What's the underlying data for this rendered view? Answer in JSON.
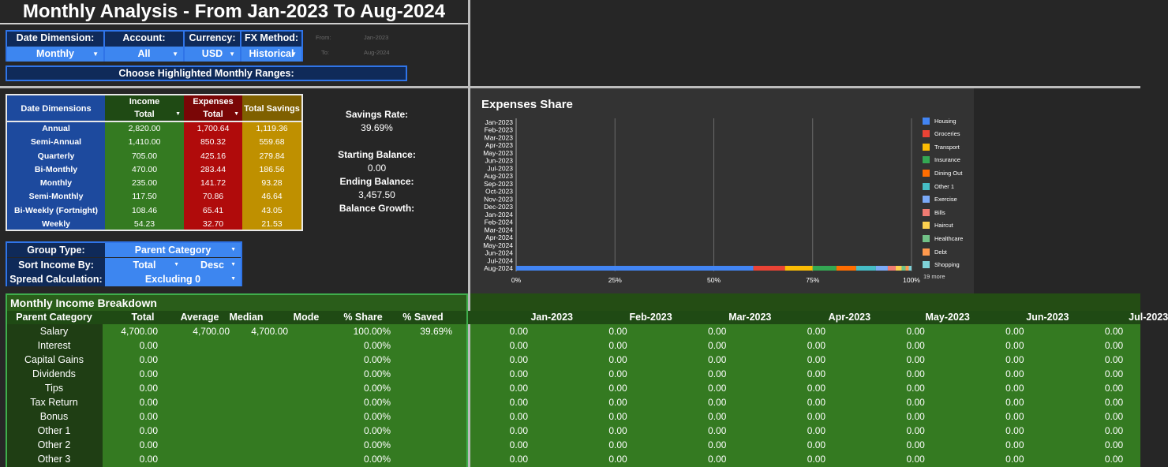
{
  "title": "Monthly Analysis - From Jan-2023 To Aug-2024",
  "controls": [
    {
      "label": "Date Dimension:",
      "value": "Monthly"
    },
    {
      "label": "Account:",
      "value": "All"
    },
    {
      "label": "Currency:",
      "value": "USD"
    },
    {
      "label": "FX Method:",
      "value": "Historical"
    }
  ],
  "range_ghost": {
    "from_label": "From:",
    "from_value": "Jan-2023",
    "to_label": "To:",
    "to_value": "Aug-2024"
  },
  "range_button": "Choose Highlighted Monthly Ranges:",
  "date_table": {
    "header_dim": "Date Dimensions",
    "header_income": "Income",
    "header_income_sub": "Total",
    "header_expenses": "Expenses",
    "header_expenses_sub": "Total",
    "header_savings": "Total Savings",
    "rows": [
      {
        "dim": "Annual",
        "income": "2,820.00",
        "expenses": "1,700.64",
        "savings": "1,119.36"
      },
      {
        "dim": "Semi-Annual",
        "income": "1,410.00",
        "expenses": "850.32",
        "savings": "559.68"
      },
      {
        "dim": "Quarterly",
        "income": "705.00",
        "expenses": "425.16",
        "savings": "279.84"
      },
      {
        "dim": "Bi-Monthly",
        "income": "470.00",
        "expenses": "283.44",
        "savings": "186.56"
      },
      {
        "dim": "Monthly",
        "income": "235.00",
        "expenses": "141.72",
        "savings": "93.28"
      },
      {
        "dim": "Semi-Monthly",
        "income": "117.50",
        "expenses": "70.86",
        "savings": "46.64"
      },
      {
        "dim": "Bi-Weekly (Fortnight)",
        "income": "108.46",
        "expenses": "65.41",
        "savings": "43.05"
      },
      {
        "dim": "Weekly",
        "income": "54.23",
        "expenses": "32.70",
        "savings": "21.53"
      }
    ]
  },
  "stats": {
    "savings_rate_label": "Savings Rate:",
    "savings_rate": "39.69%",
    "starting_balance_label": "Starting Balance:",
    "starting_balance": "0.00",
    "ending_balance_label": "Ending Balance:",
    "ending_balance": "3,457.50",
    "balance_growth_label": "Balance Growth:"
  },
  "group": {
    "group_type_label": "Group Type:",
    "group_type_value": "Parent Category",
    "sort_label": "Sort Income By:",
    "sort_value": "Total",
    "sort_order": "Desc",
    "spread_label": "Spread Calculation:",
    "spread_value": "Excluding 0"
  },
  "chart_data": {
    "type": "bar",
    "title": "Expenses Share",
    "categories": [
      "Jan-2023",
      "Feb-2023",
      "Mar-2023",
      "Apr-2023",
      "May-2023",
      "Jun-2023",
      "Jul-2023",
      "Aug-2023",
      "Sep-2023",
      "Oct-2023",
      "Nov-2023",
      "Dec-2023",
      "Jan-2024",
      "Feb-2024",
      "Mar-2024",
      "Apr-2024",
      "May-2024",
      "Jun-2024",
      "Jul-2024",
      "Aug-2024"
    ],
    "x_ticks": [
      "0%",
      "25%",
      "50%",
      "75%",
      "100%"
    ],
    "xlim": [
      0,
      100
    ],
    "legend_more": "19 more",
    "series": [
      {
        "name": "Housing",
        "color": "#4285f4",
        "values": [
          0,
          0,
          0,
          0,
          0,
          0,
          0,
          0,
          0,
          0,
          0,
          0,
          0,
          0,
          0,
          0,
          0,
          0,
          0,
          60
        ]
      },
      {
        "name": "Groceries",
        "color": "#ea4335",
        "values": [
          0,
          0,
          0,
          0,
          0,
          0,
          0,
          0,
          0,
          0,
          0,
          0,
          0,
          0,
          0,
          0,
          0,
          0,
          0,
          8
        ]
      },
      {
        "name": "Transport",
        "color": "#fbbc04",
        "values": [
          0,
          0,
          0,
          0,
          0,
          0,
          0,
          0,
          0,
          0,
          0,
          0,
          0,
          0,
          0,
          0,
          0,
          0,
          0,
          7
        ]
      },
      {
        "name": "Insurance",
        "color": "#34a853",
        "values": [
          0,
          0,
          0,
          0,
          0,
          0,
          0,
          0,
          0,
          0,
          0,
          0,
          0,
          0,
          0,
          0,
          0,
          0,
          0,
          6
        ]
      },
      {
        "name": "Dining Out",
        "color": "#ff6d01",
        "values": [
          0,
          0,
          0,
          0,
          0,
          0,
          0,
          0,
          0,
          0,
          0,
          0,
          0,
          0,
          0,
          0,
          0,
          0,
          0,
          5
        ]
      },
      {
        "name": "Other 1",
        "color": "#46bdc6",
        "values": [
          0,
          0,
          0,
          0,
          0,
          0,
          0,
          0,
          0,
          0,
          0,
          0,
          0,
          0,
          0,
          0,
          0,
          0,
          0,
          5
        ]
      },
      {
        "name": "Exercise",
        "color": "#7baaf7",
        "values": [
          0,
          0,
          0,
          0,
          0,
          0,
          0,
          0,
          0,
          0,
          0,
          0,
          0,
          0,
          0,
          0,
          0,
          0,
          0,
          3
        ]
      },
      {
        "name": "Bills",
        "color": "#f07b72",
        "values": [
          0,
          0,
          0,
          0,
          0,
          0,
          0,
          0,
          0,
          0,
          0,
          0,
          0,
          0,
          0,
          0,
          0,
          0,
          0,
          2
        ]
      },
      {
        "name": "Haircut",
        "color": "#fcd04f",
        "values": [
          0,
          0,
          0,
          0,
          0,
          0,
          0,
          0,
          0,
          0,
          0,
          0,
          0,
          0,
          0,
          0,
          0,
          0,
          0,
          1.5
        ]
      },
      {
        "name": "Healthcare",
        "color": "#71c287",
        "values": [
          0,
          0,
          0,
          0,
          0,
          0,
          0,
          0,
          0,
          0,
          0,
          0,
          0,
          0,
          0,
          0,
          0,
          0,
          0,
          1
        ]
      },
      {
        "name": "Debt",
        "color": "#ff994d",
        "values": [
          0,
          0,
          0,
          0,
          0,
          0,
          0,
          0,
          0,
          0,
          0,
          0,
          0,
          0,
          0,
          0,
          0,
          0,
          0,
          0.8
        ]
      },
      {
        "name": "Shopping",
        "color": "#7ed1d7",
        "values": [
          0,
          0,
          0,
          0,
          0,
          0,
          0,
          0,
          0,
          0,
          0,
          0,
          0,
          0,
          0,
          0,
          0,
          0,
          0,
          0.7
        ]
      }
    ]
  },
  "breakdown": {
    "title": "Monthly Income Breakdown",
    "headers": [
      "Parent Category",
      "Total",
      "Average",
      "Median",
      "Mode",
      "% Share",
      "% Saved"
    ],
    "month_headers": [
      "Jan-2023",
      "Feb-2023",
      "Mar-2023",
      "Apr-2023",
      "May-2023",
      "Jun-2023",
      "Jul-2023"
    ],
    "rows": [
      {
        "cat": "Salary",
        "total": "4,700.00",
        "avg": "4,700.00",
        "median": "4,700.00",
        "mode": "",
        "share": "100.00%",
        "saved": "39.69%"
      },
      {
        "cat": "Interest",
        "total": "0.00",
        "avg": "",
        "median": "",
        "mode": "",
        "share": "0.00%",
        "saved": ""
      },
      {
        "cat": "Capital Gains",
        "total": "0.00",
        "avg": "",
        "median": "",
        "mode": "",
        "share": "0.00%",
        "saved": ""
      },
      {
        "cat": "Dividends",
        "total": "0.00",
        "avg": "",
        "median": "",
        "mode": "",
        "share": "0.00%",
        "saved": ""
      },
      {
        "cat": "Tips",
        "total": "0.00",
        "avg": "",
        "median": "",
        "mode": "",
        "share": "0.00%",
        "saved": ""
      },
      {
        "cat": "Tax Return",
        "total": "0.00",
        "avg": "",
        "median": "",
        "mode": "",
        "share": "0.00%",
        "saved": ""
      },
      {
        "cat": "Bonus",
        "total": "0.00",
        "avg": "",
        "median": "",
        "mode": "",
        "share": "0.00%",
        "saved": ""
      },
      {
        "cat": "Other 1",
        "total": "0.00",
        "avg": "",
        "median": "",
        "mode": "",
        "share": "0.00%",
        "saved": ""
      },
      {
        "cat": "Other 2",
        "total": "0.00",
        "avg": "",
        "median": "",
        "mode": "",
        "share": "0.00%",
        "saved": ""
      },
      {
        "cat": "Other 3",
        "total": "0.00",
        "avg": "",
        "median": "",
        "mode": "",
        "share": "0.00%",
        "saved": ""
      }
    ],
    "month_value": "0.00"
  }
}
